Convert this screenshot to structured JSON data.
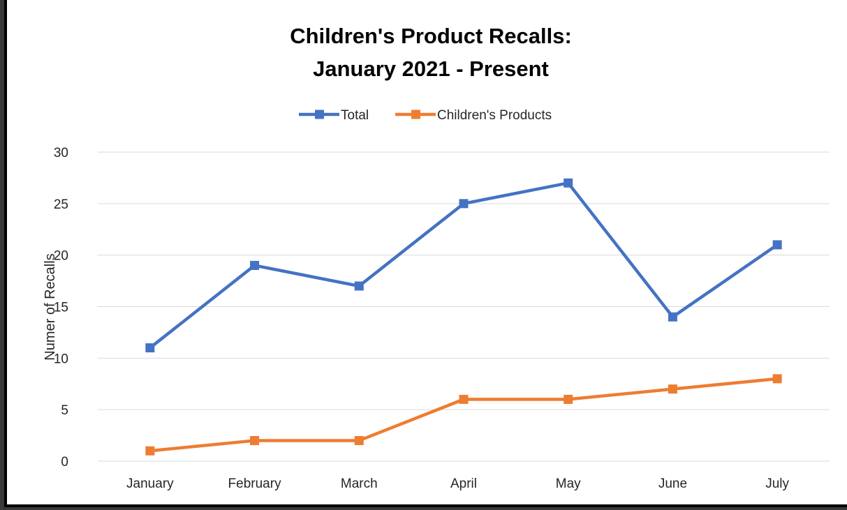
{
  "chart_data": {
    "type": "line",
    "title": [
      "Children's Product Recalls:",
      "January 2021 - Present"
    ],
    "ylabel": "Numer of Recalls",
    "xlabel": "",
    "categories": [
      "January",
      "February",
      "March",
      "April",
      "May",
      "June",
      "July"
    ],
    "ylim": [
      0,
      30
    ],
    "yticks": [
      0,
      5,
      10,
      15,
      20,
      25,
      30
    ],
    "grid": true,
    "legend_position": "top",
    "series": [
      {
        "name": "Total",
        "color": "#4472C4",
        "values": [
          11,
          19,
          17,
          25,
          27,
          14,
          21
        ]
      },
      {
        "name": "Children's Products",
        "color": "#ED7D31",
        "values": [
          1,
          2,
          2,
          6,
          6,
          7,
          8
        ]
      }
    ]
  }
}
